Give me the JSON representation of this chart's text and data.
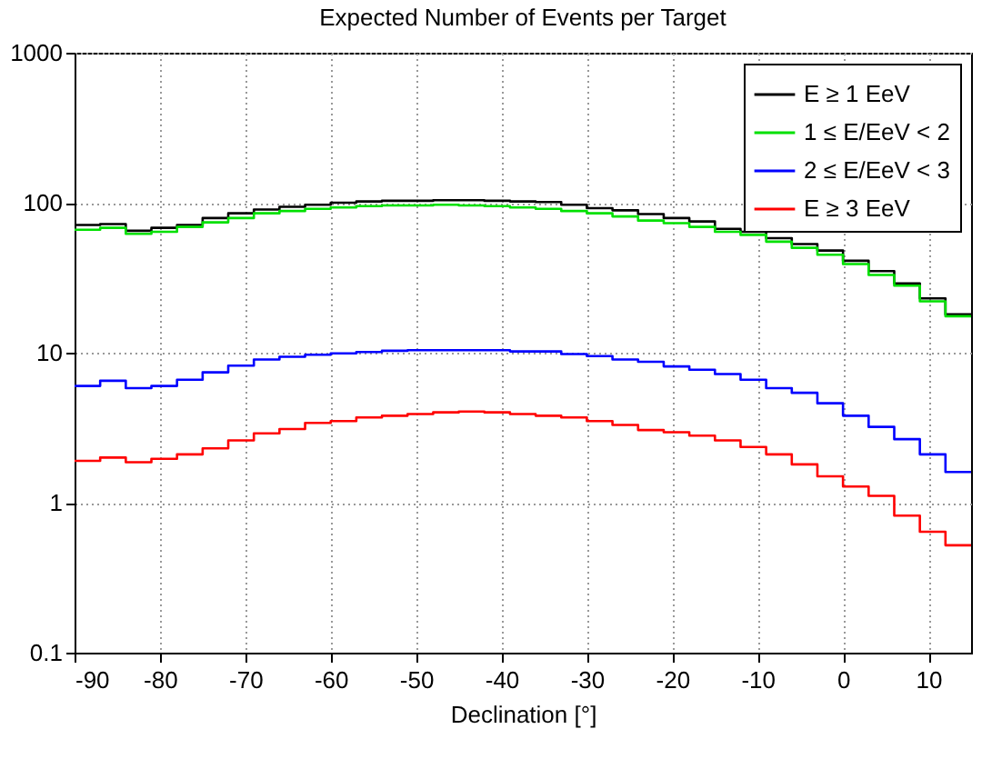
{
  "chart_data": {
    "type": "step",
    "title": "Expected Number of Events per Target",
    "xlabel": "Declination [°]",
    "x": [
      -90,
      -87,
      -84,
      -81,
      -78,
      -75,
      -72,
      -69,
      -66,
      -63,
      -60,
      -57,
      -54,
      -51,
      -48,
      -45,
      -42,
      -39,
      -36,
      -33,
      -30,
      -27,
      -24,
      -21,
      -18,
      -15,
      -12,
      -9,
      -6,
      -3,
      0,
      3,
      6,
      9,
      12,
      15
    ],
    "series": [
      {
        "name": "E ≥ 1 EeV",
        "color": "#000000",
        "values": [
          71,
          72,
          65,
          68,
          71,
          79,
          85,
          90,
          94,
          97,
          100,
          102,
          103,
          103,
          104,
          104,
          103,
          102,
          101,
          97,
          92,
          89,
          84,
          79,
          75,
          67,
          64,
          58,
          53,
          48,
          41,
          35,
          29,
          23,
          18,
          18
        ]
      },
      {
        "name": "1 ≤ E/EeV < 2",
        "color": "#00e000",
        "values": [
          66,
          68,
          62,
          64,
          69,
          74,
          79,
          85,
          88,
          91,
          93,
          95,
          96,
          96,
          97,
          96,
          95,
          93,
          91,
          88,
          85,
          81,
          76,
          73,
          69,
          64,
          61,
          55,
          50,
          45,
          39,
          33,
          28,
          22,
          17.5,
          17.5
        ]
      },
      {
        "name": "2 ≤ E/EeV < 3",
        "color": "#0000ff",
        "values": [
          6.0,
          6.5,
          5.8,
          6.0,
          6.6,
          7.4,
          8.2,
          9.0,
          9.4,
          9.7,
          9.9,
          10.1,
          10.3,
          10.4,
          10.4,
          10.4,
          10.4,
          10.2,
          10.2,
          9.8,
          9.5,
          9.0,
          8.7,
          8.1,
          7.7,
          7.2,
          6.6,
          5.8,
          5.4,
          4.6,
          3.8,
          3.2,
          2.65,
          2.1,
          1.6,
          1.6
        ]
      },
      {
        "name": "E ≥ 3 EeV",
        "color": "#ff0000",
        "values": [
          1.9,
          2.0,
          1.86,
          1.96,
          2.1,
          2.3,
          2.6,
          2.9,
          3.1,
          3.4,
          3.5,
          3.7,
          3.8,
          3.9,
          4.0,
          4.05,
          4.0,
          3.9,
          3.8,
          3.7,
          3.5,
          3.3,
          3.05,
          2.95,
          2.8,
          2.6,
          2.35,
          2.1,
          1.8,
          1.5,
          1.28,
          1.11,
          0.82,
          0.64,
          0.52,
          0.52
        ]
      }
    ],
    "xlim": [
      -90,
      15
    ],
    "xticks": [
      -90,
      -80,
      -70,
      -60,
      -50,
      -40,
      -30,
      -20,
      -10,
      0,
      10
    ],
    "ylim": [
      0.1,
      1000
    ],
    "yticks": [
      0.1,
      1,
      10,
      100,
      1000
    ],
    "log": true,
    "grid": true,
    "legend": "top right"
  }
}
